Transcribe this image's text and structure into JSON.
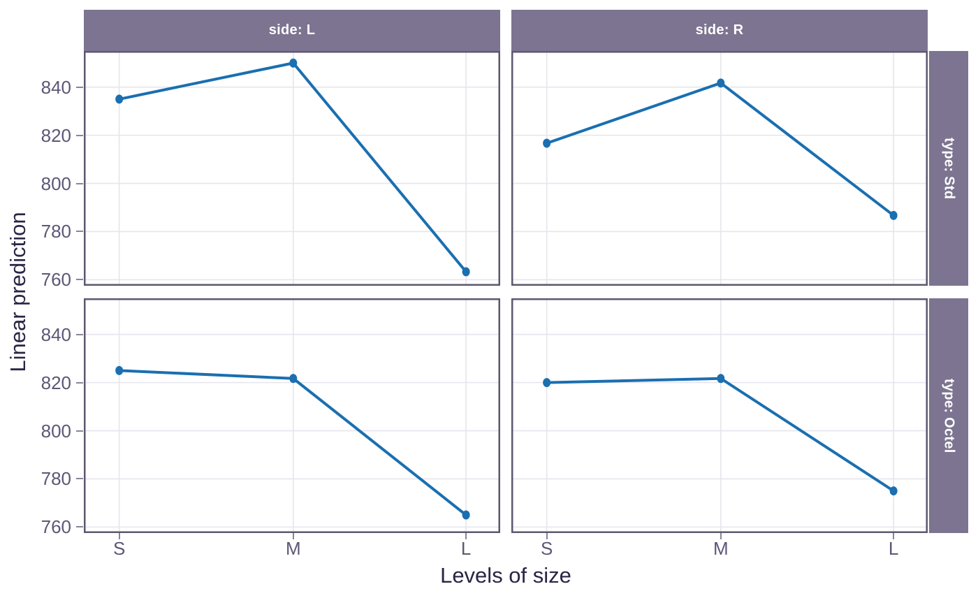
{
  "chart_data": {
    "type": "line",
    "title": "",
    "xlabel": "Levels of size",
    "ylabel": "Linear prediction",
    "categories": [
      "S",
      "M",
      "L"
    ],
    "yticks": [
      760,
      780,
      800,
      820,
      840
    ],
    "ylim": [
      757.5,
      855
    ],
    "grid": true,
    "legend": false,
    "facet_cols": [
      {
        "label": "side: L"
      },
      {
        "label": "side: R"
      }
    ],
    "facet_rows": [
      {
        "label": "type: Std"
      },
      {
        "label": "type: Octel"
      }
    ],
    "facets": [
      {
        "row_label": "type: Std",
        "col_label": "side: L",
        "values": [
          835.0,
          850.0,
          763.3
        ]
      },
      {
        "row_label": "type: Std",
        "col_label": "side: R",
        "values": [
          816.7,
          841.7,
          786.7
        ]
      },
      {
        "row_label": "type: Octel",
        "col_label": "side: L",
        "values": [
          825.0,
          821.7,
          765.0
        ]
      },
      {
        "row_label": "type: Octel",
        "col_label": "side: R",
        "values": [
          820.0,
          821.7,
          775.0
        ]
      }
    ]
  },
  "colors": {
    "line": "#1a6fb0",
    "strip_bg": "#7c7490",
    "strip_text": "#ffffff",
    "panel_border": "#5e5770",
    "gridline": "#e6e5ec",
    "tick": "#8a8499",
    "tick_label": "#5d5776",
    "axis_title": "#2b2444"
  }
}
